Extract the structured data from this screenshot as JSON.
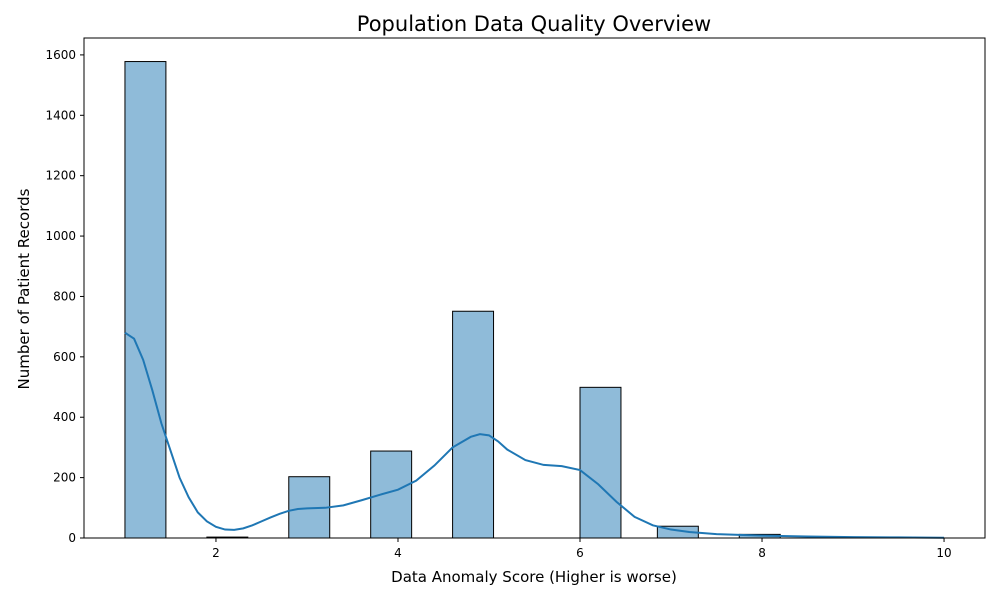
{
  "chart_data": {
    "type": "bar",
    "title": "Population Data Quality Overview",
    "xlabel": "Data Anomaly Score (Higher is worse)",
    "ylabel": "Number of Patient Records",
    "xlim": [
      0.55,
      10.45
    ],
    "ylim": [
      0,
      1656
    ],
    "xticks": [
      2,
      4,
      6,
      8,
      10
    ],
    "yticks": [
      0,
      200,
      400,
      600,
      800,
      1000,
      1200,
      1400,
      1600
    ],
    "bin_width": 0.45,
    "bins": [
      {
        "x0": 1.0,
        "x1": 1.45,
        "count": 1578
      },
      {
        "x0": 1.9,
        "x1": 2.35,
        "count": 3
      },
      {
        "x0": 2.8,
        "x1": 3.25,
        "count": 203
      },
      {
        "x0": 3.7,
        "x1": 4.15,
        "count": 288
      },
      {
        "x0": 4.6,
        "x1": 5.05,
        "count": 751
      },
      {
        "x0": 6.0,
        "x1": 6.45,
        "count": 499
      },
      {
        "x0": 6.85,
        "x1": 7.3,
        "count": 39
      },
      {
        "x0": 7.75,
        "x1": 8.2,
        "count": 12
      }
    ],
    "kde": {
      "x": [
        1.0,
        1.1,
        1.2,
        1.3,
        1.4,
        1.5,
        1.6,
        1.7,
        1.8,
        1.9,
        2.0,
        2.1,
        2.2,
        2.3,
        2.4,
        2.5,
        2.6,
        2.7,
        2.8,
        2.9,
        3.0,
        3.2,
        3.4,
        3.6,
        3.8,
        4.0,
        4.2,
        4.4,
        4.6,
        4.8,
        4.9,
        5.0,
        5.1,
        5.2,
        5.4,
        5.6,
        5.8,
        6.0,
        6.2,
        6.4,
        6.6,
        6.8,
        7.0,
        7.2,
        7.5,
        8.0,
        8.5,
        9.0,
        9.5,
        10.0
      ],
      "y": [
        680,
        660,
        590,
        490,
        380,
        290,
        200,
        135,
        85,
        55,
        37,
        28,
        27,
        32,
        42,
        55,
        68,
        80,
        90,
        96,
        98,
        100,
        108,
        125,
        143,
        160,
        190,
        240,
        300,
        335,
        344,
        340,
        320,
        293,
        258,
        242,
        238,
        225,
        178,
        120,
        70,
        42,
        28,
        20,
        13,
        8,
        5,
        3,
        2,
        1
      ]
    },
    "bar_color": "#1f77b4",
    "bar_alpha": 0.5,
    "line_color": "#1f77b4",
    "grid": false
  }
}
